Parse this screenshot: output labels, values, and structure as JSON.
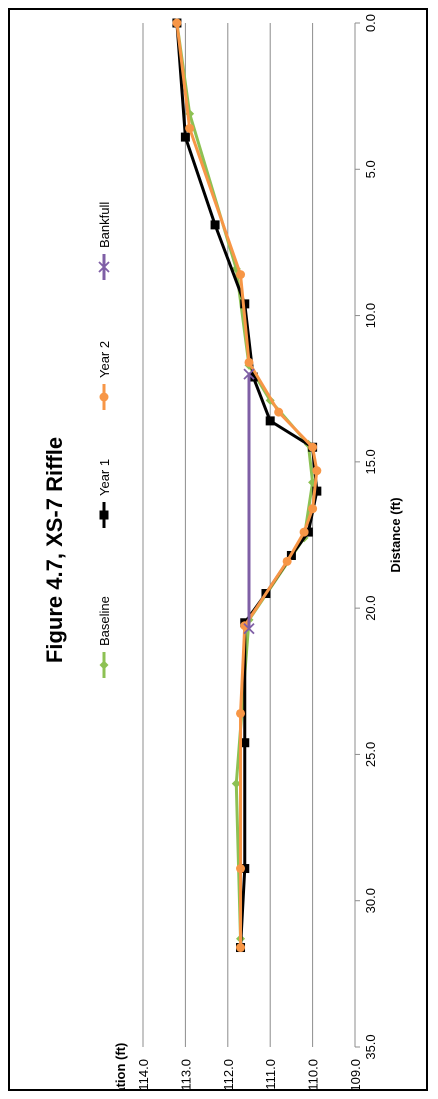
{
  "chart_data": {
    "type": "line",
    "title": "Figure 4.7, XS-7 Riffle",
    "xlabel": "Distance (ft)",
    "ylabel": "Elevation (ft)",
    "xlim": [
      0,
      35
    ],
    "ylim": [
      109,
      114
    ],
    "x_ticks": [
      "0.0",
      "5.0",
      "10.0",
      "15.0",
      "20.0",
      "25.0",
      "30.0",
      "35.0"
    ],
    "y_ticks": [
      "109.0",
      "110.0",
      "111.0",
      "112.0",
      "113.0",
      "114.0"
    ],
    "grid": "horizontal gridlines",
    "legend_position": "top",
    "orientation": "rotated 90 degrees clockwise",
    "series": [
      {
        "name": "Baseline",
        "color": "#8dc153",
        "marker": "diamond",
        "points": [
          [
            0.0,
            113.2
          ],
          [
            3.1,
            112.9
          ],
          [
            8.4,
            111.8
          ],
          [
            11.7,
            111.5
          ],
          [
            12.9,
            111.0
          ],
          [
            14.4,
            110.1
          ],
          [
            15.7,
            110.0
          ],
          [
            17.6,
            110.2
          ],
          [
            20.4,
            111.5
          ],
          [
            26.0,
            111.8
          ],
          [
            31.3,
            111.7
          ]
        ]
      },
      {
        "name": "Year 1",
        "color": "#000000",
        "marker": "square",
        "points": [
          [
            0.0,
            113.2
          ],
          [
            3.9,
            113.0
          ],
          [
            6.9,
            112.3
          ],
          [
            9.6,
            111.6
          ],
          [
            12.1,
            111.4
          ],
          [
            13.6,
            111.0
          ],
          [
            14.5,
            110.0
          ],
          [
            16.0,
            109.9
          ],
          [
            17.4,
            110.1
          ],
          [
            18.2,
            110.5
          ],
          [
            19.5,
            111.1
          ],
          [
            20.5,
            111.6
          ],
          [
            24.6,
            111.6
          ],
          [
            28.9,
            111.6
          ],
          [
            31.6,
            111.7
          ]
        ]
      },
      {
        "name": "Year 2",
        "color": "#f79646",
        "marker": "circle",
        "points": [
          [
            0.0,
            113.2
          ],
          [
            3.6,
            112.9
          ],
          [
            8.6,
            111.7
          ],
          [
            11.6,
            111.5
          ],
          [
            13.3,
            110.8
          ],
          [
            14.5,
            110.0
          ],
          [
            15.3,
            109.9
          ],
          [
            16.6,
            110.0
          ],
          [
            17.4,
            110.2
          ],
          [
            18.4,
            110.6
          ],
          [
            20.6,
            111.6
          ],
          [
            23.6,
            111.7
          ],
          [
            28.9,
            111.7
          ],
          [
            31.6,
            111.7
          ]
        ]
      },
      {
        "name": "Bankfull",
        "color": "#7f5fa6",
        "marker": "x",
        "points": [
          [
            12.0,
            111.5
          ],
          [
            20.7,
            111.5
          ]
        ]
      }
    ]
  }
}
